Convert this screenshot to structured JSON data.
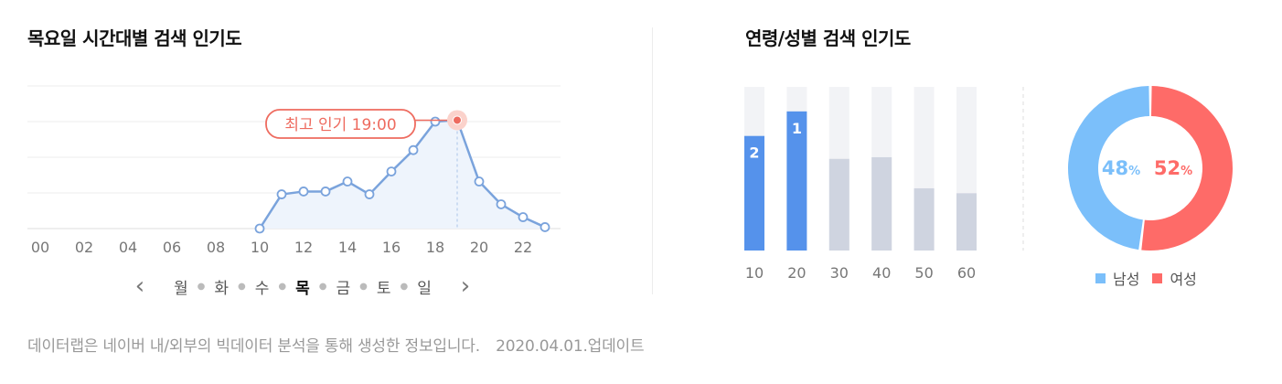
{
  "left_title": "목요일 시간대별 검색 인기도",
  "right_title": "연령/성별 검색 인기도",
  "day_nav": {
    "prev_icon": "chevron-left-icon",
    "next_icon": "chevron-right-icon",
    "days": [
      "월",
      "화",
      "수",
      "목",
      "금",
      "토",
      "일"
    ],
    "active_day": "목"
  },
  "gender_legend": {
    "male": "남성",
    "female": "여성"
  },
  "footer": {
    "note": "데이터랩은 네이버 내/외부의 빅데이터 분석을 통해 생성한 정보입니다.",
    "update": "2020.04.01.업데이트"
  },
  "colors": {
    "line": "#7aa3dc",
    "area": "#eef4fc",
    "peak": "#ee6b5f",
    "bar_rank": "#5592eb",
    "bar_other": "#cfd4e0",
    "bar_track": "#f2f3f6",
    "male": "#7bbffa",
    "female": "#fe6b68"
  },
  "chart_data": [
    {
      "type": "line",
      "title": "목요일 시간대별 검색 인기도",
      "x_tick_labels": [
        "00",
        "02",
        "04",
        "06",
        "08",
        "10",
        "12",
        "14",
        "16",
        "18",
        "20",
        "22"
      ],
      "x": [
        10,
        11,
        12,
        13,
        14,
        15,
        16,
        17,
        18,
        19,
        20,
        21,
        22,
        23
      ],
      "values": [
        0,
        24,
        26,
        26,
        33,
        24,
        40,
        55,
        75,
        76,
        33,
        17,
        8,
        1
      ],
      "ylim": [
        0,
        100
      ],
      "grid": true,
      "annotation": {
        "x": 19,
        "label": "최고 인기 19:00"
      }
    },
    {
      "type": "bar",
      "title": "연령/성별 검색 인기도",
      "categories": [
        "10",
        "20",
        "30",
        "40",
        "50",
        "60"
      ],
      "values": [
        70,
        85,
        56,
        57,
        38,
        35
      ],
      "rank_labels": [
        "2",
        "1",
        "",
        "",
        "",
        ""
      ],
      "ylim": [
        0,
        100
      ]
    },
    {
      "type": "pie",
      "labels": [
        "남성",
        "여성"
      ],
      "values": [
        48,
        52
      ],
      "value_labels": [
        "48",
        "52"
      ],
      "unit": "%"
    }
  ]
}
